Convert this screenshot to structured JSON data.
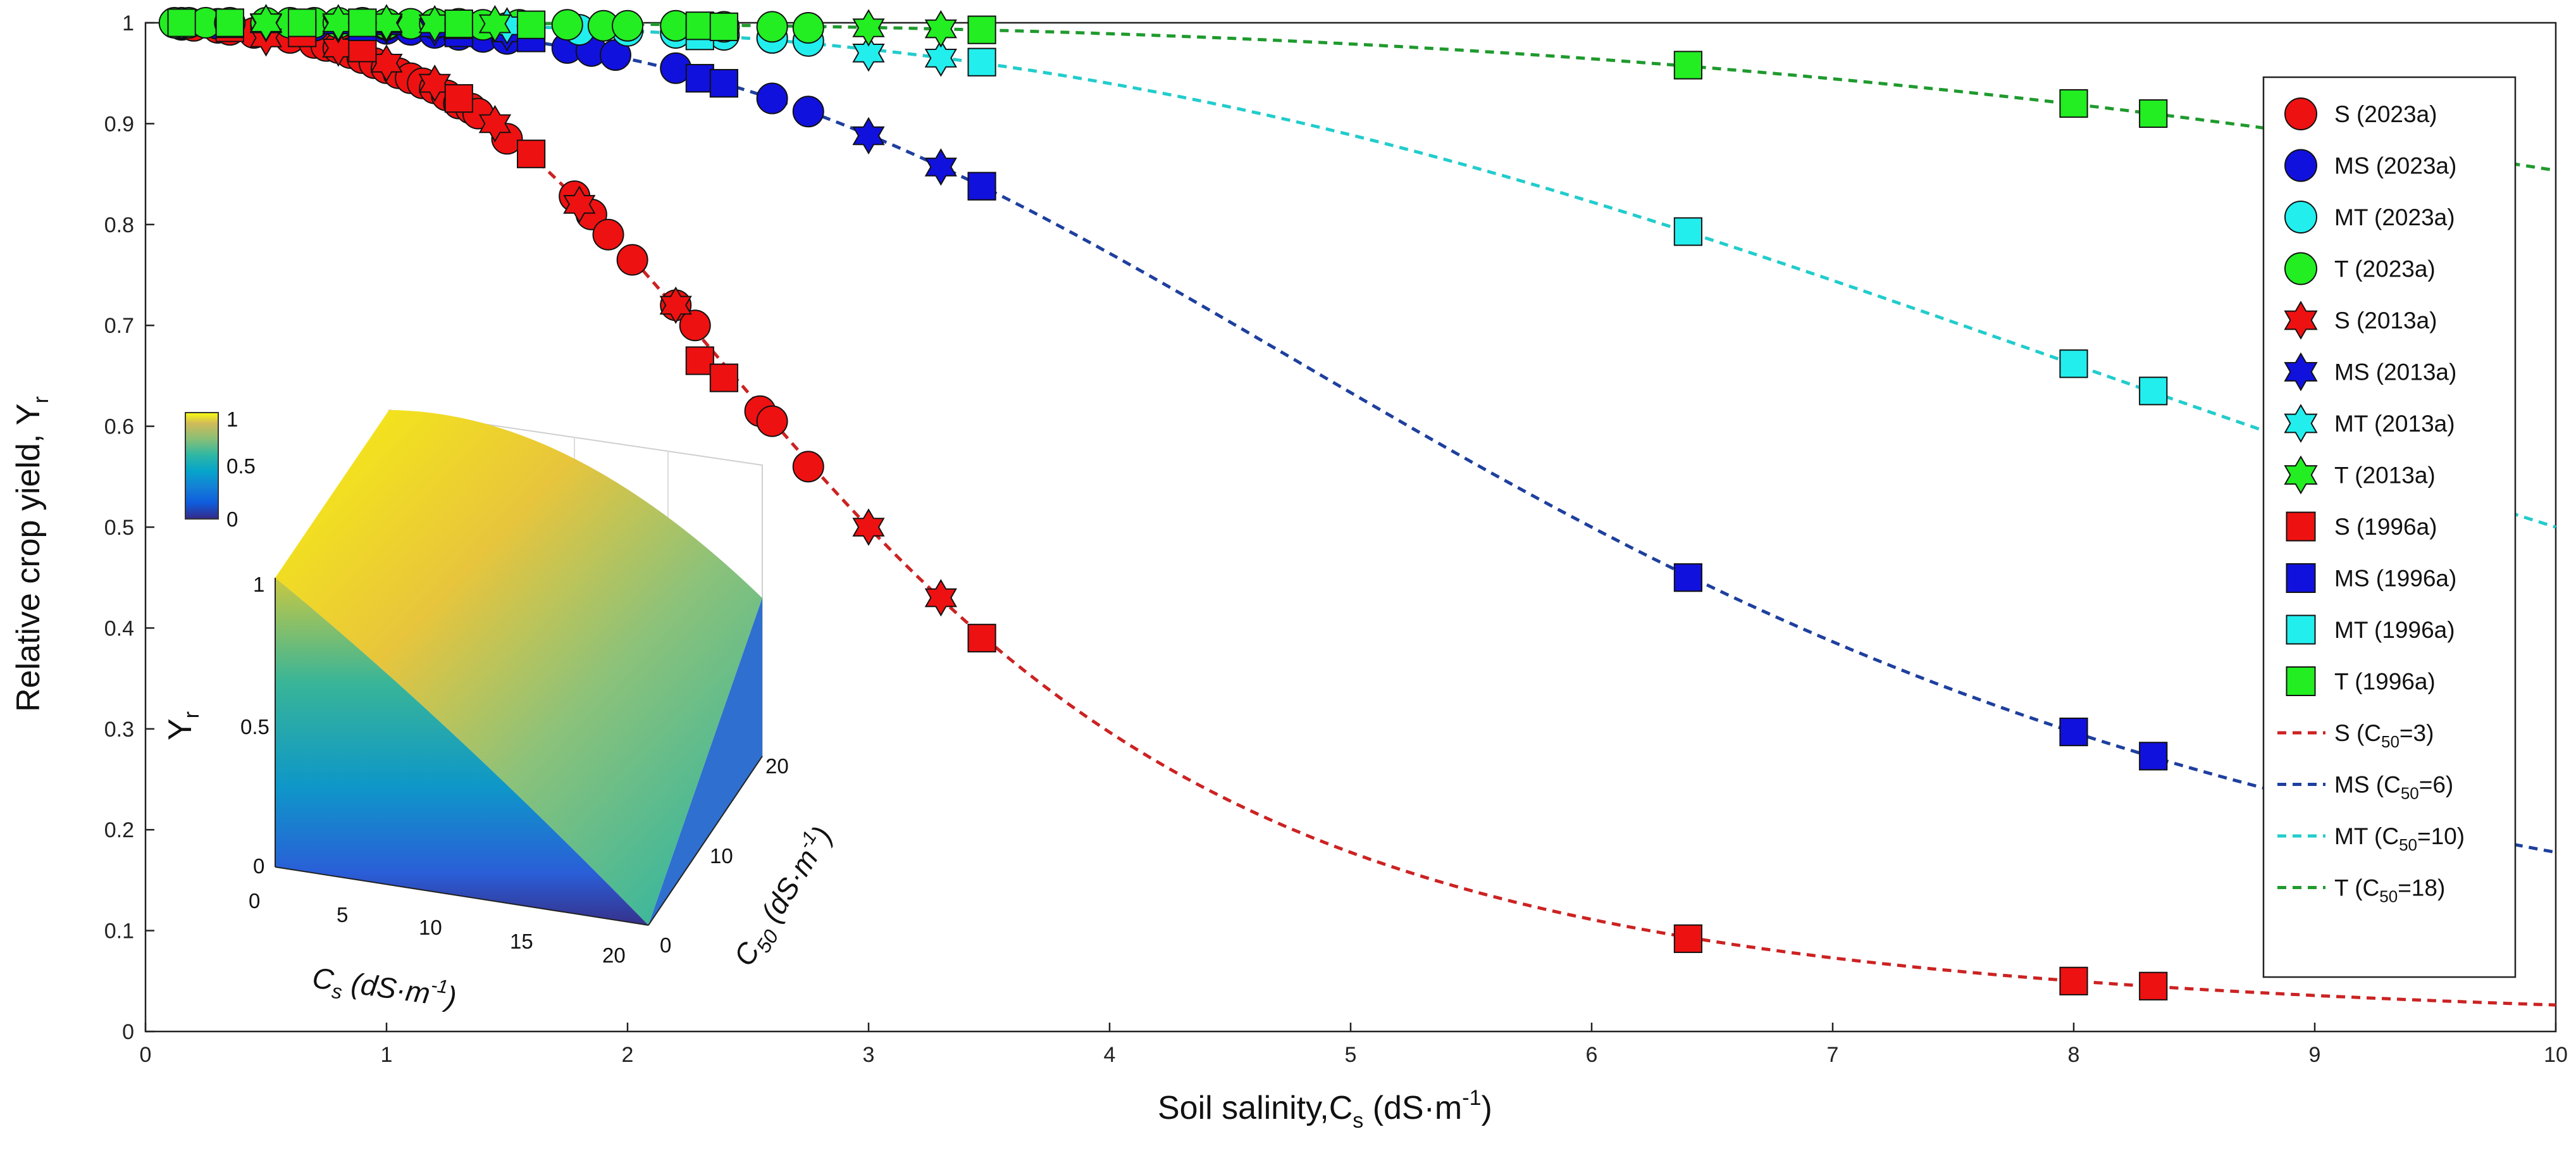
{
  "chart_data": [
    {
      "type": "scatter",
      "xlabel": "Soil salinity,C",
      "xlabel_sub": "s",
      "xlabel_unit_pre": " (dS·m",
      "xlabel_unit_sup": "-1",
      "xlabel_unit_post": ")",
      "ylabel": "Relative crop yield, Y",
      "ylabel_sub": "r",
      "xlim": [
        0,
        10
      ],
      "ylim": [
        0,
        1
      ],
      "xticks": [
        0,
        1,
        2,
        3,
        4,
        5,
        6,
        7,
        8,
        9,
        10
      ],
      "yticks": [
        0,
        0.1,
        0.2,
        0.3,
        0.4,
        0.5,
        0.6,
        0.7,
        0.8,
        0.9,
        1
      ],
      "grid": false,
      "legend_position": "right",
      "colors": {
        "S": "#ee1111",
        "MS": "#1111dd",
        "MT": "#22eeee",
        "T": "#22ee22",
        "S_line": "#cc2222",
        "MS_line": "#1e3f9e",
        "MT_line": "#22cccc",
        "T_line": "#1f9a2e"
      },
      "series": [
        {
          "name": "S (2023a)",
          "group": "S",
          "marker": "circle",
          "x": [
            0.15,
            0.2,
            0.3,
            0.35,
            0.45,
            0.6,
            0.7,
            0.75,
            0.8,
            0.85,
            0.9,
            0.95,
            1.0,
            1.05,
            1.1,
            1.15,
            1.2,
            1.25,
            1.3,
            1.35,
            1.38,
            1.5,
            1.78,
            1.85,
            1.92,
            2.02,
            2.2,
            2.28,
            2.55,
            2.6,
            2.75
          ],
          "y": [
            0.998,
            0.997,
            0.995,
            0.993,
            0.99,
            0.985,
            0.98,
            0.977,
            0.975,
            0.97,
            0.965,
            0.96,
            0.955,
            0.95,
            0.945,
            0.94,
            0.935,
            0.928,
            0.92,
            0.915,
            0.91,
            0.885,
            0.828,
            0.81,
            0.79,
            0.765,
            0.72,
            0.7,
            0.615,
            0.605,
            0.56
          ]
        },
        {
          "name": "MS (2023a)",
          "group": "MS",
          "marker": "circle",
          "x": [
            0.15,
            0.3,
            0.5,
            0.7,
            0.9,
            1.0,
            1.1,
            1.2,
            1.3,
            1.4,
            1.5,
            1.75,
            1.85,
            1.95,
            2.2,
            2.6,
            2.75
          ],
          "y": [
            0.999,
            0.999,
            0.998,
            0.997,
            0.995,
            0.994,
            0.993,
            0.99,
            0.988,
            0.986,
            0.984,
            0.975,
            0.972,
            0.968,
            0.955,
            0.925,
            0.912
          ]
        },
        {
          "name": "MT (2023a)",
          "group": "MT",
          "marker": "circle",
          "x": [
            0.15,
            0.5,
            1.0,
            1.5,
            1.8,
            2.0,
            2.2,
            2.4,
            2.6,
            2.75
          ],
          "y": [
            1.0,
            0.999,
            0.998,
            0.995,
            0.993,
            0.992,
            0.99,
            0.988,
            0.985,
            0.982
          ]
        },
        {
          "name": "T (2023a)",
          "group": "T",
          "marker": "circle",
          "x": [
            0.12,
            0.18,
            0.25,
            0.35,
            0.5,
            0.6,
            0.7,
            0.8,
            0.9,
            1.0,
            1.1,
            1.2,
            1.3,
            1.4,
            1.55,
            1.75,
            1.9,
            2.0,
            2.2,
            2.4,
            2.6,
            2.75
          ],
          "y": [
            1.0,
            1.0,
            1.0,
            1.0,
            1.0,
            1.0,
            1.0,
            1.0,
            1.0,
            0.999,
            0.999,
            0.999,
            0.999,
            0.998,
            0.998,
            0.998,
            0.997,
            0.997,
            0.997,
            0.996,
            0.996,
            0.995
          ]
        },
        {
          "name": "S (2013a)",
          "group": "S",
          "marker": "hexagram",
          "x": [
            0.5,
            0.8,
            1.0,
            1.2,
            1.45,
            1.8,
            2.2,
            3.0,
            3.3
          ],
          "y": [
            0.985,
            0.975,
            0.96,
            0.94,
            0.9,
            0.82,
            0.72,
            0.5,
            0.43
          ]
        },
        {
          "name": "MS (2013a)",
          "group": "MS",
          "marker": "hexagram",
          "x": [
            0.5,
            0.8,
            1.0,
            1.2,
            1.5,
            3.0,
            3.3
          ],
          "y": [
            0.999,
            0.998,
            0.997,
            0.995,
            0.99,
            0.888,
            0.857
          ]
        },
        {
          "name": "MT (2013a)",
          "group": "MT",
          "marker": "hexagram",
          "x": [
            0.5,
            1.0,
            1.5,
            3.0,
            3.3
          ],
          "y": [
            1.0,
            0.999,
            0.997,
            0.97,
            0.965
          ]
        },
        {
          "name": "T (2013a)",
          "group": "T",
          "marker": "hexagram",
          "x": [
            0.5,
            0.8,
            1.0,
            1.2,
            1.45,
            3.0,
            3.3
          ],
          "y": [
            1.0,
            1.0,
            1.0,
            0.999,
            0.999,
            0.995,
            0.994
          ]
        },
        {
          "name": "S (1996a)",
          "group": "S",
          "marker": "square",
          "x": [
            0.35,
            0.65,
            0.9,
            1.3,
            1.6,
            2.3,
            2.4,
            3.47,
            6.4,
            8.0,
            8.33
          ],
          "y": [
            0.995,
            0.99,
            0.975,
            0.925,
            0.87,
            0.665,
            0.648,
            0.39,
            0.092,
            0.05,
            0.045
          ]
        },
        {
          "name": "MS (1996a)",
          "group": "MS",
          "marker": "square",
          "x": [
            0.35,
            0.9,
            1.3,
            1.6,
            2.3,
            2.4,
            3.47,
            6.4,
            8.0,
            8.33
          ],
          "y": [
            0.999,
            0.996,
            0.99,
            0.985,
            0.945,
            0.94,
            0.838,
            0.45,
            0.297,
            0.273
          ]
        },
        {
          "name": "MT (1996a)",
          "group": "MT",
          "marker": "square",
          "x": [
            0.35,
            1.3,
            2.3,
            3.47,
            6.4,
            8.0,
            8.33
          ],
          "y": [
            1.0,
            0.998,
            0.987,
            0.961,
            0.793,
            0.662,
            0.635
          ]
        },
        {
          "name": "T (1996a)",
          "group": "T",
          "marker": "square",
          "x": [
            0.15,
            0.35,
            0.65,
            0.9,
            1.3,
            1.6,
            2.3,
            2.4,
            3.47,
            6.4,
            8.0,
            8.33
          ],
          "y": [
            1.0,
            1.0,
            1.0,
            1.0,
            0.999,
            0.998,
            0.997,
            0.996,
            0.993,
            0.958,
            0.92,
            0.91
          ]
        }
      ],
      "lines": [
        {
          "name": "S (C",
          "name_sub": "50",
          "name_post": "=3)",
          "group": "S_line",
          "C50": 3,
          "n": 3
        },
        {
          "name": "MS (C",
          "name_sub": "50",
          "name_post": "=6)",
          "group": "MS_line",
          "C50": 6,
          "n": 3
        },
        {
          "name": "MT (C",
          "name_sub": "50",
          "name_post": "=10)",
          "group": "MT_line",
          "C50": 10,
          "n": 3
        },
        {
          "name": "T (C",
          "name_sub": "50",
          "name_post": "=18)",
          "group": "T_line",
          "C50": 18,
          "n": 3
        }
      ]
    },
    {
      "type": "surface",
      "inset": true,
      "zlabel": "Y",
      "zlabel_sub": "r",
      "xlabel": "C",
      "xlabel_sub": "s",
      "xlabel_unit_pre": " (dS·m",
      "xlabel_unit_sup": "-1",
      "xlabel_unit_post": ")",
      "ylabel": "C",
      "ylabel_sub": "50",
      "ylabel_unit_pre": " (dS·m",
      "ylabel_unit_sup": "-1",
      "ylabel_unit_post": ")",
      "xticks": [
        0,
        5,
        10,
        15,
        20
      ],
      "yticks": [
        0,
        10,
        20
      ],
      "zticks": [
        0,
        0.5,
        1
      ],
      "colorbar_ticks": [
        0,
        0.5,
        1
      ],
      "colormap": "parula"
    }
  ]
}
